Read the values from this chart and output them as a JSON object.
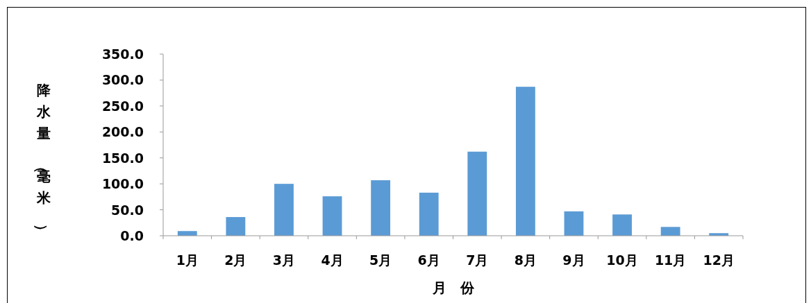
{
  "chart_data": {
    "type": "bar",
    "xlabel": "月　份",
    "ylabel": "降水量（毫米）",
    "categories": [
      "1月",
      "2月",
      "3月",
      "4月",
      "5月",
      "6月",
      "7月",
      "8月",
      "9月",
      "10月",
      "11月",
      "12月"
    ],
    "values": [
      9,
      36,
      100,
      76,
      107,
      83,
      162,
      287,
      47,
      41,
      17,
      5
    ],
    "color": "#5b9bd5",
    "ylim": [
      0,
      350
    ],
    "yticks": [
      {
        "value": 0,
        "label": "0.0"
      },
      {
        "value": 50,
        "label": "50.0"
      },
      {
        "value": 100,
        "label": "100.0"
      },
      {
        "value": 150,
        "label": "150.0"
      },
      {
        "value": 200,
        "label": "200.0"
      },
      {
        "value": 250,
        "label": "250.0"
      },
      {
        "value": 300,
        "label": "300.0"
      },
      {
        "value": 350,
        "label": "350.0"
      }
    ]
  }
}
